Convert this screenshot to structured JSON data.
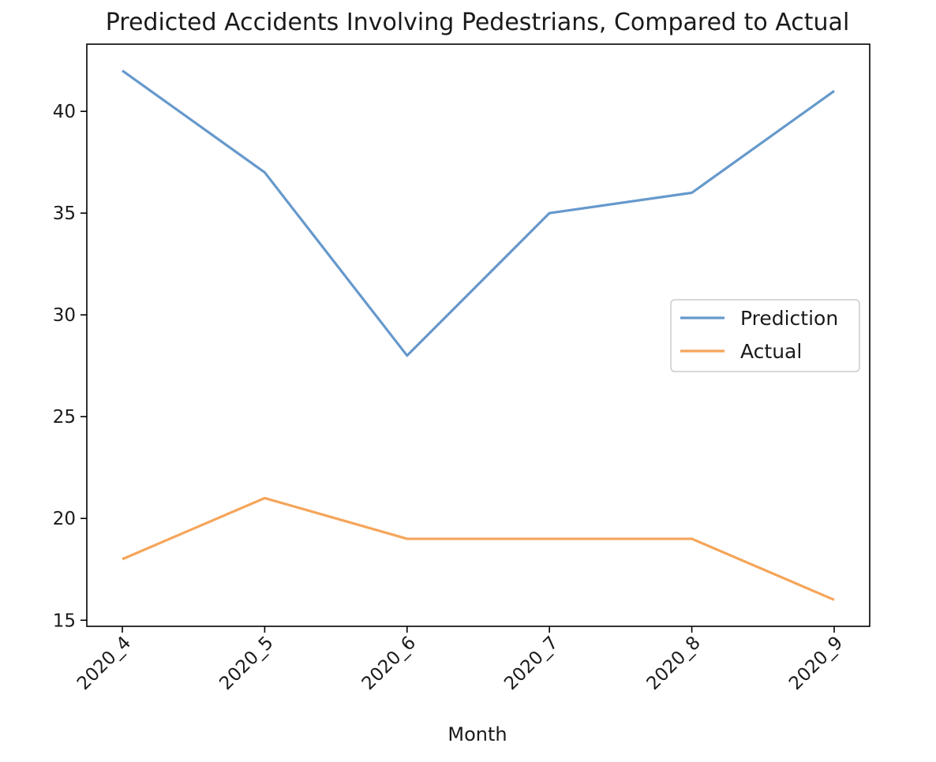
{
  "chart_data": {
    "type": "line",
    "title": "Predicted Accidents Involving Pedestrians, Compared to Actual",
    "xlabel": "Month",
    "ylabel": "",
    "categories": [
      "2020_4",
      "2020_5",
      "2020_6",
      "2020_7",
      "2020_8",
      "2020_9"
    ],
    "series": [
      {
        "name": "Prediction",
        "color": "#6699cc",
        "values": [
          42,
          37,
          28,
          35,
          36,
          41
        ]
      },
      {
        "name": "Actual",
        "color": "#f5a55a",
        "values": [
          18,
          21,
          19,
          19,
          19,
          16
        ]
      }
    ],
    "ylim": [
      14.7,
      43.3
    ],
    "yticks": [
      15,
      20,
      25,
      30,
      35,
      40
    ],
    "grid": false,
    "legend_position": "center-right"
  }
}
